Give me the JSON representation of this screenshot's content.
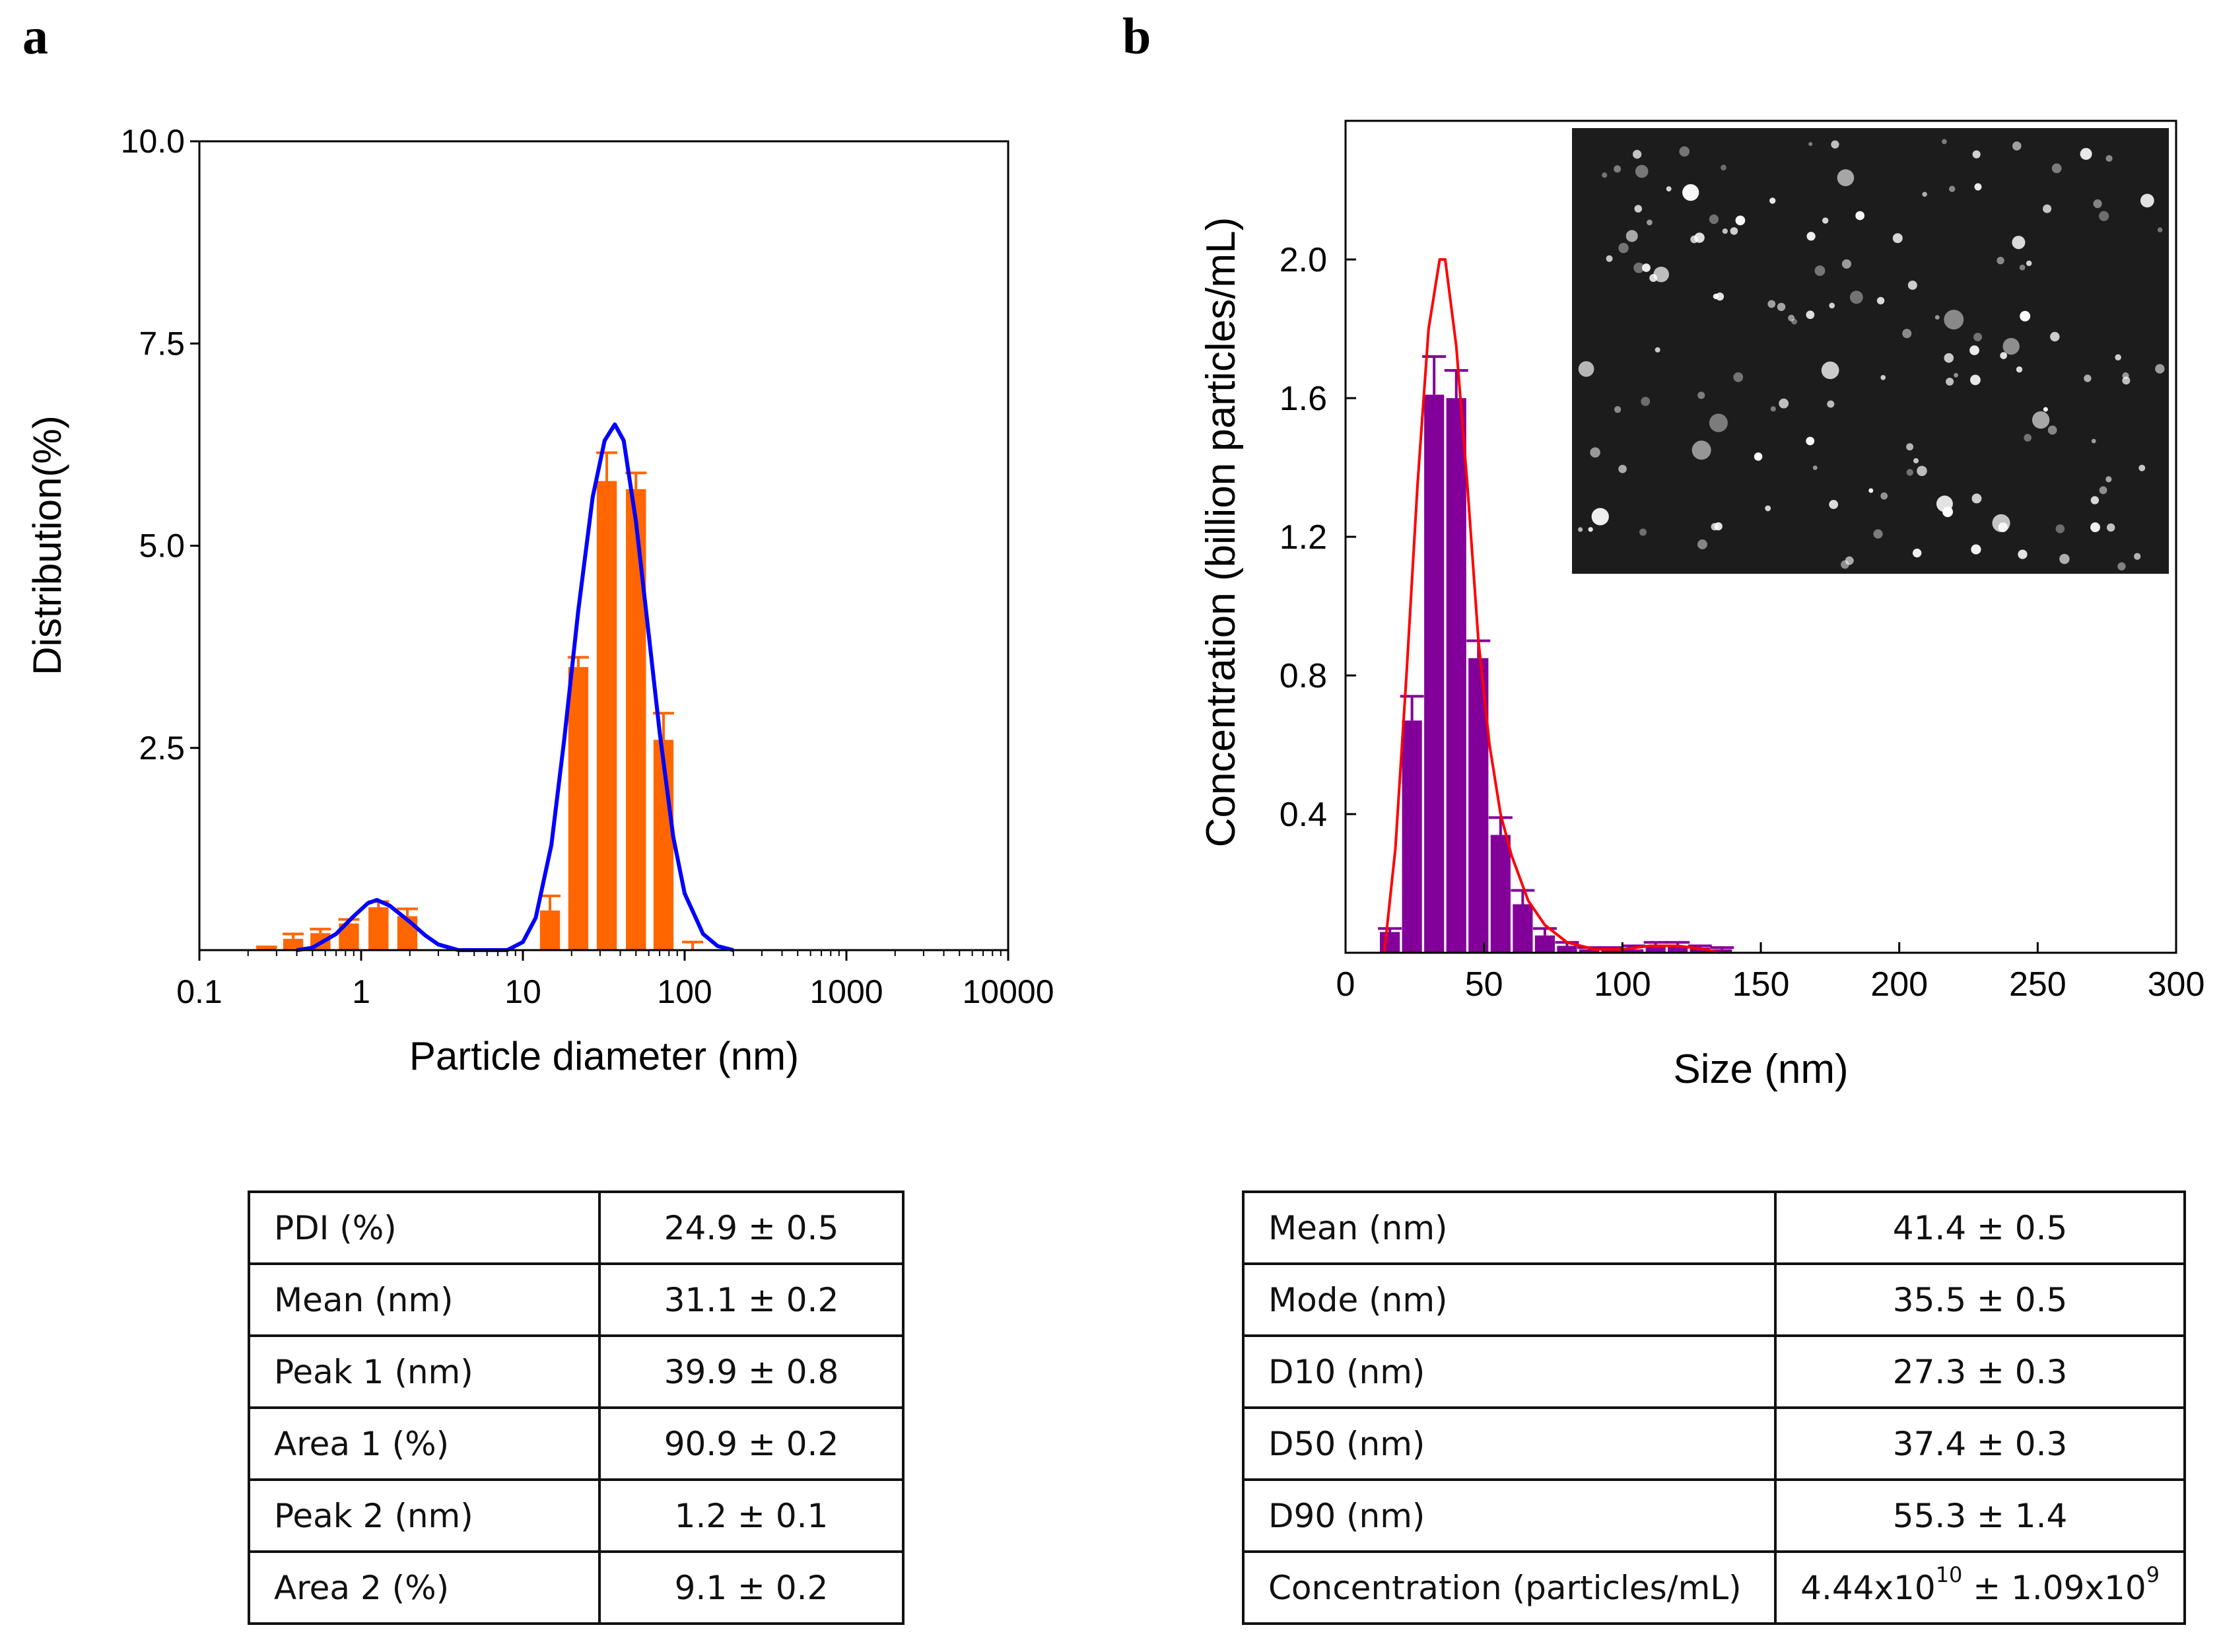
{
  "panel_labels": {
    "a": "a",
    "b": "b"
  },
  "chart_data": [
    {
      "type": "bar",
      "panel": "a",
      "xlabel": "Particle diameter (nm)",
      "ylabel": "Distribution(%)",
      "xscale": "log",
      "xlim": [
        0.1,
        10000
      ],
      "ylim": [
        0,
        10
      ],
      "xticks": [
        "0.1",
        "1",
        "10",
        "100",
        "1000",
        "10000"
      ],
      "yticks": [
        "2.5",
        "5.0",
        "7.5",
        "10.0"
      ],
      "grid": false,
      "colors": {
        "bars": "#FF6600",
        "curve": "#0000FF"
      },
      "bars": {
        "x": [
          0.26,
          0.38,
          0.56,
          0.84,
          1.28,
          1.93,
          14.7,
          22,
          33,
          50,
          74,
          112
        ],
        "values": [
          0.04,
          0.14,
          0.21,
          0.33,
          0.53,
          0.42,
          0.49,
          3.5,
          5.8,
          5.7,
          2.6,
          0.0
        ],
        "error_upper": [
          0.04,
          0.2,
          0.26,
          0.38,
          0.6,
          0.51,
          0.67,
          3.62,
          6.15,
          5.9,
          2.93,
          0.1
        ]
      },
      "curve": [
        [
          0.4,
          0
        ],
        [
          0.5,
          0.03
        ],
        [
          0.7,
          0.2
        ],
        [
          0.9,
          0.42
        ],
        [
          1.1,
          0.58
        ],
        [
          1.25,
          0.62
        ],
        [
          1.5,
          0.55
        ],
        [
          2,
          0.35
        ],
        [
          2.5,
          0.18
        ],
        [
          3,
          0.07
        ],
        [
          4,
          0
        ],
        [
          8,
          0
        ],
        [
          10,
          0.1
        ],
        [
          12,
          0.4
        ],
        [
          15,
          1.3
        ],
        [
          18,
          2.6
        ],
        [
          22,
          4.2
        ],
        [
          27,
          5.6
        ],
        [
          32,
          6.3
        ],
        [
          37,
          6.5
        ],
        [
          42,
          6.3
        ],
        [
          50,
          5.3
        ],
        [
          60,
          3.9
        ],
        [
          70,
          2.7
        ],
        [
          85,
          1.4
        ],
        [
          100,
          0.7
        ],
        [
          130,
          0.2
        ],
        [
          160,
          0.05
        ],
        [
          200,
          0
        ]
      ]
    },
    {
      "type": "bar",
      "panel": "b",
      "xlabel": "Size (nm)",
      "ylabel": "Concentration (billion particles/mL)",
      "xlim": [
        0,
        300
      ],
      "ylim": [
        0,
        2.4
      ],
      "xticks": [
        "0",
        "50",
        "100",
        "150",
        "200",
        "250",
        "300"
      ],
      "yticks": [
        "0.4",
        "0.8",
        "1.2",
        "1.6",
        "2.0"
      ],
      "grid": false,
      "colors": {
        "bars": "#820099",
        "curve": "#FF0000"
      },
      "inset": "particle tracking video frame (bright particles on dark background)",
      "bars": {
        "x": [
          16,
          24,
          32,
          40,
          48,
          56,
          64,
          72,
          80,
          88,
          96,
          104,
          112,
          120,
          128,
          136
        ],
        "values": [
          0.06,
          0.67,
          1.61,
          1.6,
          0.85,
          0.34,
          0.14,
          0.05,
          0.02,
          0.01,
          0.01,
          0.01,
          0.02,
          0.02,
          0.015,
          0.01
        ],
        "error_upper": [
          0.07,
          0.74,
          1.72,
          1.68,
          0.9,
          0.39,
          0.18,
          0.07,
          0.03,
          0.015,
          0.015,
          0.02,
          0.03,
          0.03,
          0.02,
          0.015
        ]
      },
      "curve": [
        [
          14,
          0
        ],
        [
          18,
          0.3
        ],
        [
          22,
          0.8
        ],
        [
          26,
          1.35
        ],
        [
          30,
          1.8
        ],
        [
          34,
          2.0
        ],
        [
          36,
          2.0
        ],
        [
          40,
          1.75
        ],
        [
          44,
          1.35
        ],
        [
          48,
          0.9
        ],
        [
          52,
          0.6
        ],
        [
          56,
          0.4
        ],
        [
          60,
          0.28
        ],
        [
          66,
          0.15
        ],
        [
          72,
          0.08
        ],
        [
          80,
          0.03
        ],
        [
          90,
          0.01
        ],
        [
          100,
          0.01
        ],
        [
          110,
          0.02
        ],
        [
          120,
          0.02
        ],
        [
          130,
          0.01
        ],
        [
          135,
          0
        ]
      ]
    }
  ],
  "table_a": [
    {
      "label": "PDI (%)",
      "value": "24.9 ± 0.5"
    },
    {
      "label": "Mean (nm)",
      "value": "31.1 ± 0.2"
    },
    {
      "label": "Peak 1 (nm)",
      "value": "39.9 ± 0.8"
    },
    {
      "label": "Area 1 (%)",
      "value": "90.9 ± 0.2"
    },
    {
      "label": "Peak 2 (nm)",
      "value": "1.2 ± 0.1"
    },
    {
      "label": "Area 2 (%)",
      "value": "9.1 ± 0.2"
    }
  ],
  "table_b": [
    {
      "label": "Mean (nm)",
      "value": "41.4 ± 0.5"
    },
    {
      "label": "Mode (nm)",
      "value": "35.5 ± 0.5"
    },
    {
      "label": "D10 (nm)",
      "value": "27.3 ± 0.3"
    },
    {
      "label": "D50 (nm)",
      "value": "37.4 ± 0.3"
    },
    {
      "label": "D90 (nm)",
      "value": "55.3 ± 1.4"
    }
  ],
  "table_b_concentration": {
    "label": "Concentration (particles/mL)",
    "value_mantissa": "4.44x10",
    "value_exp": "10",
    "pm": " ± ",
    "error_mantissa": "1.09x10",
    "error_exp": "9"
  }
}
